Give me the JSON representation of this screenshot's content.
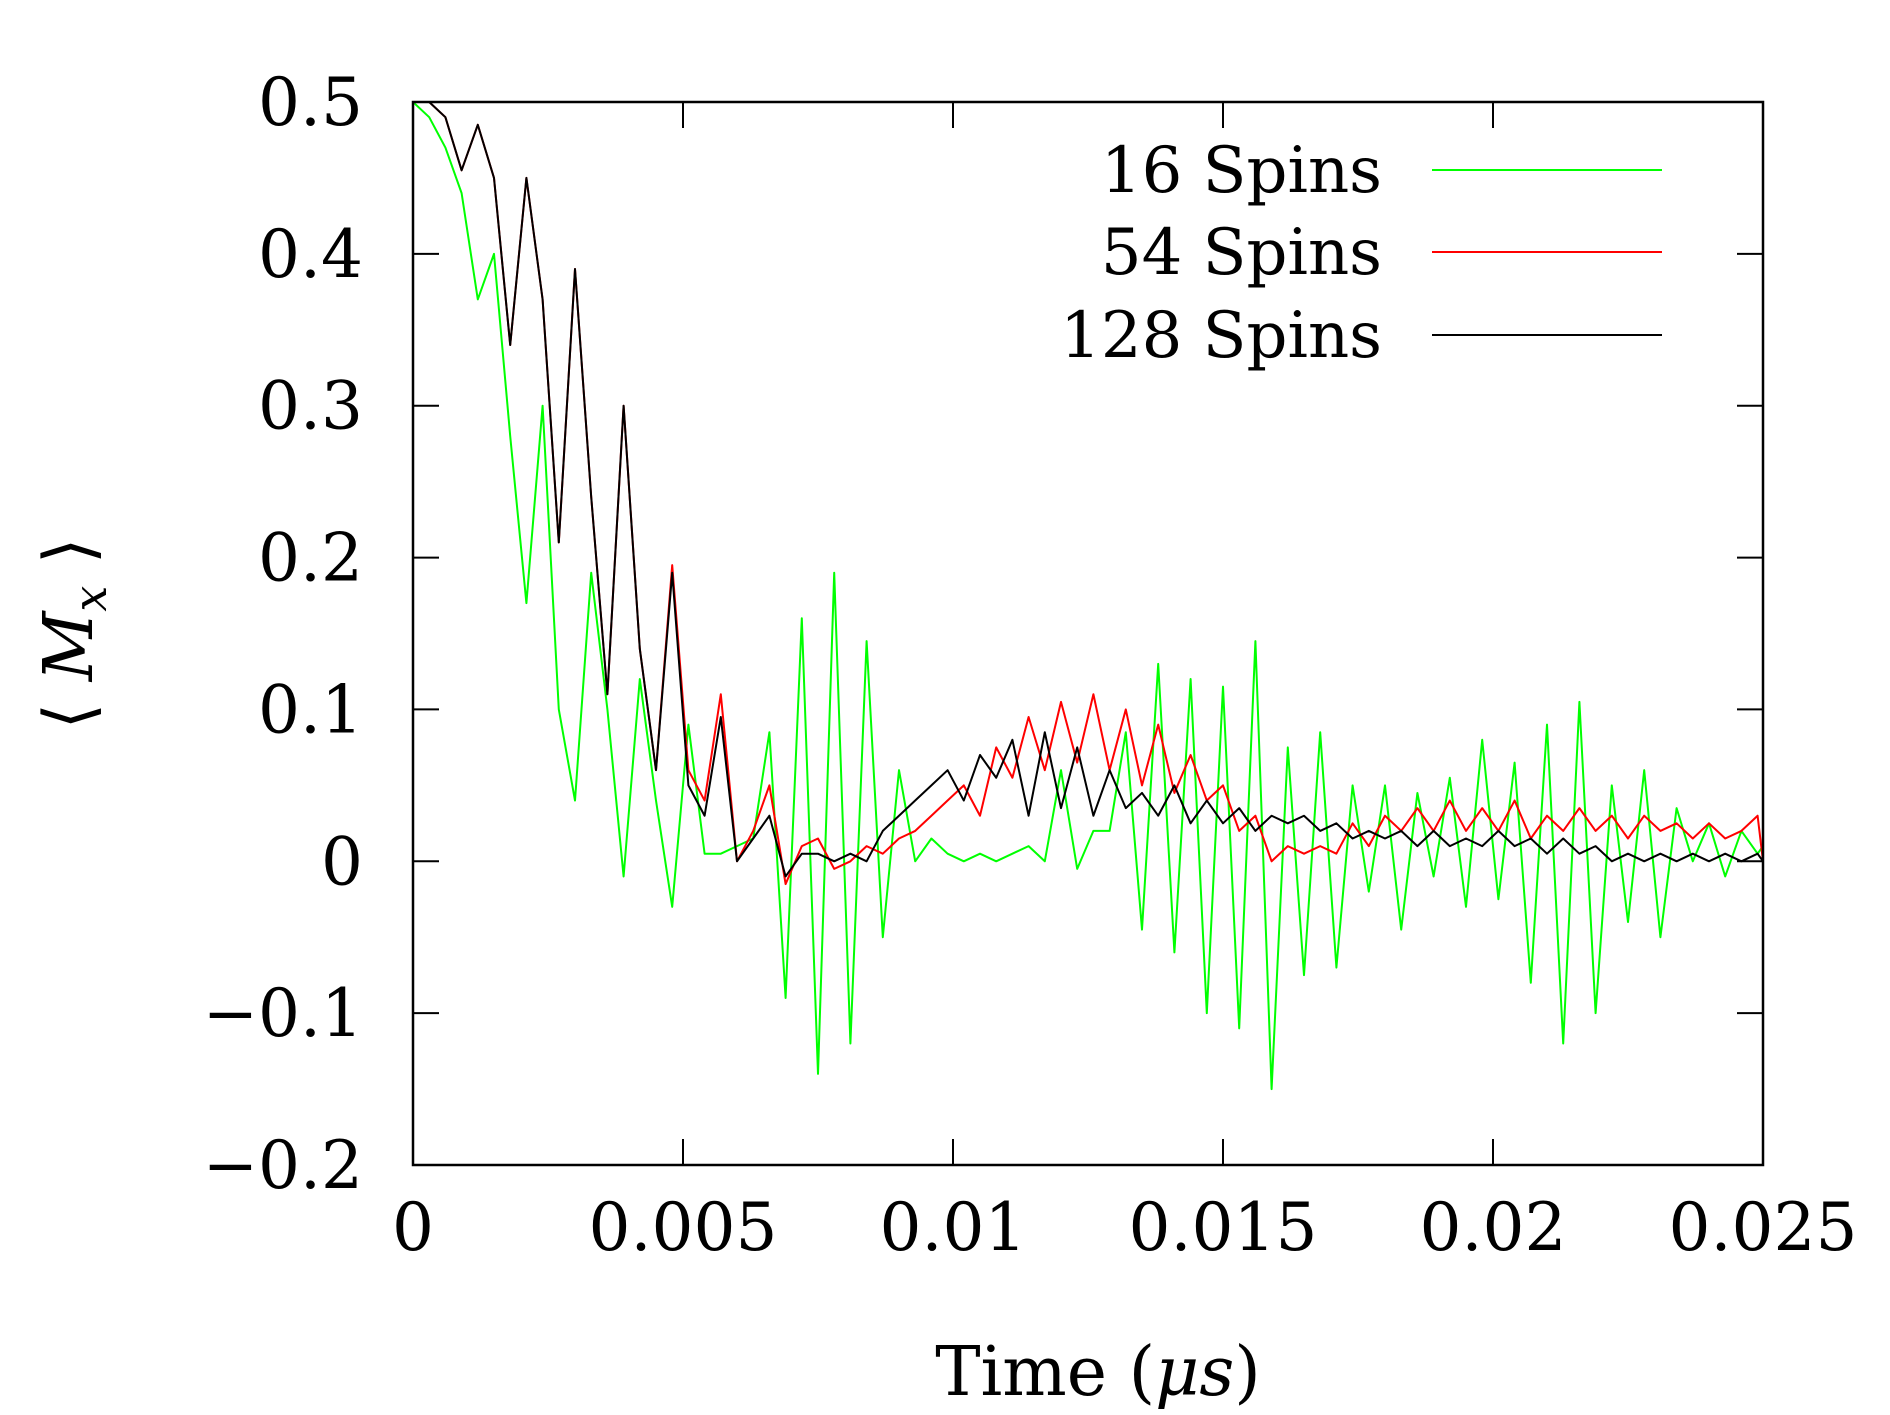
{
  "chart_data": {
    "type": "line",
    "title": "",
    "xlabel": "Time (μs)",
    "ylabel": "⟨M_x⟩",
    "xlim": [
      0,
      0.025
    ],
    "ylim": [
      -0.2,
      0.5
    ],
    "xticks": [
      0,
      0.005,
      0.01,
      0.015,
      0.02,
      0.025
    ],
    "xtick_labels": [
      "0",
      "0.005",
      "0.01",
      "0.015",
      "0.02",
      "0.025"
    ],
    "yticks": [
      -0.2,
      -0.1,
      0,
      0.1,
      0.2,
      0.3,
      0.4,
      0.5
    ],
    "ytick_labels": [
      "−0.2",
      "−0.1",
      "0",
      "0.1",
      "0.2",
      "0.3",
      "0.4",
      "0.5"
    ],
    "grid": false,
    "legend_position": "top-right",
    "series": [
      {
        "name": "16 Spins",
        "color": "#00ff00",
        "points": [
          [
            0,
            0.5
          ],
          [
            0.0003,
            0.49
          ],
          [
            0.0006,
            0.47
          ],
          [
            0.0009,
            0.44
          ],
          [
            0.0012,
            0.37
          ],
          [
            0.0015,
            0.4
          ],
          [
            0.0018,
            0.28
          ],
          [
            0.0021,
            0.17
          ],
          [
            0.0024,
            0.3
          ],
          [
            0.0027,
            0.1
          ],
          [
            0.003,
            0.04
          ],
          [
            0.0033,
            0.19
          ],
          [
            0.0036,
            0.1
          ],
          [
            0.0039,
            -0.01
          ],
          [
            0.0042,
            0.12
          ],
          [
            0.0045,
            0.04
          ],
          [
            0.0048,
            -0.03
          ],
          [
            0.0051,
            0.09
          ],
          [
            0.0054,
            0.005
          ],
          [
            0.0057,
            0.005
          ],
          [
            0.006,
            0.01
          ],
          [
            0.0063,
            0.015
          ],
          [
            0.0066,
            0.085
          ],
          [
            0.0069,
            -0.09
          ],
          [
            0.0072,
            0.16
          ],
          [
            0.0075,
            -0.14
          ],
          [
            0.0078,
            0.19
          ],
          [
            0.0081,
            -0.12
          ],
          [
            0.0084,
            0.145
          ],
          [
            0.0087,
            -0.05
          ],
          [
            0.009,
            0.06
          ],
          [
            0.0093,
            0.0
          ],
          [
            0.0096,
            0.015
          ],
          [
            0.0099,
            0.005
          ],
          [
            0.0102,
            0.0
          ],
          [
            0.0105,
            0.005
          ],
          [
            0.0108,
            0.0
          ],
          [
            0.0111,
            0.005
          ],
          [
            0.0114,
            0.01
          ],
          [
            0.0117,
            0.0
          ],
          [
            0.012,
            0.06
          ],
          [
            0.0123,
            -0.005
          ],
          [
            0.0126,
            0.02
          ],
          [
            0.0129,
            0.02
          ],
          [
            0.0132,
            0.085
          ],
          [
            0.0135,
            -0.045
          ],
          [
            0.0138,
            0.13
          ],
          [
            0.0141,
            -0.06
          ],
          [
            0.0144,
            0.12
          ],
          [
            0.0147,
            -0.1
          ],
          [
            0.015,
            0.115
          ],
          [
            0.0153,
            -0.11
          ],
          [
            0.0156,
            0.145
          ],
          [
            0.0159,
            -0.15
          ],
          [
            0.0162,
            0.075
          ],
          [
            0.0165,
            -0.075
          ],
          [
            0.0168,
            0.085
          ],
          [
            0.0171,
            -0.07
          ],
          [
            0.0174,
            0.05
          ],
          [
            0.0177,
            -0.02
          ],
          [
            0.018,
            0.05
          ],
          [
            0.0183,
            -0.045
          ],
          [
            0.0186,
            0.045
          ],
          [
            0.0189,
            -0.01
          ],
          [
            0.0192,
            0.055
          ],
          [
            0.0195,
            -0.03
          ],
          [
            0.0198,
            0.08
          ],
          [
            0.0201,
            -0.025
          ],
          [
            0.0204,
            0.065
          ],
          [
            0.0207,
            -0.08
          ],
          [
            0.021,
            0.09
          ],
          [
            0.0213,
            -0.12
          ],
          [
            0.0216,
            0.105
          ],
          [
            0.0219,
            -0.1
          ],
          [
            0.0222,
            0.05
          ],
          [
            0.0225,
            -0.04
          ],
          [
            0.0228,
            0.06
          ],
          [
            0.0231,
            -0.05
          ],
          [
            0.0234,
            0.035
          ],
          [
            0.0237,
            0.0
          ],
          [
            0.024,
            0.025
          ],
          [
            0.0243,
            -0.01
          ],
          [
            0.0246,
            0.02
          ],
          [
            0.0249,
            0.005
          ],
          [
            0.025,
            0.01
          ]
        ]
      },
      {
        "name": "54 Spins",
        "color": "#ff0000",
        "points": [
          [
            0,
            0.5
          ],
          [
            0.0003,
            0.5
          ],
          [
            0.0006,
            0.49
          ],
          [
            0.0009,
            0.455
          ],
          [
            0.0012,
            0.485
          ],
          [
            0.0015,
            0.45
          ],
          [
            0.0018,
            0.34
          ],
          [
            0.0021,
            0.45
          ],
          [
            0.0024,
            0.37
          ],
          [
            0.0027,
            0.21
          ],
          [
            0.003,
            0.39
          ],
          [
            0.0033,
            0.24
          ],
          [
            0.0036,
            0.11
          ],
          [
            0.0039,
            0.3
          ],
          [
            0.0042,
            0.14
          ],
          [
            0.0045,
            0.06
          ],
          [
            0.0048,
            0.195
          ],
          [
            0.0051,
            0.06
          ],
          [
            0.0054,
            0.04
          ],
          [
            0.0057,
            0.11
          ],
          [
            0.006,
            0.0
          ],
          [
            0.0063,
            0.02
          ],
          [
            0.0066,
            0.05
          ],
          [
            0.0069,
            -0.015
          ],
          [
            0.0072,
            0.01
          ],
          [
            0.0075,
            0.015
          ],
          [
            0.0078,
            -0.005
          ],
          [
            0.0081,
            0.0
          ],
          [
            0.0084,
            0.01
          ],
          [
            0.0087,
            0.005
          ],
          [
            0.009,
            0.015
          ],
          [
            0.0093,
            0.02
          ],
          [
            0.0096,
            0.03
          ],
          [
            0.0099,
            0.04
          ],
          [
            0.0102,
            0.05
          ],
          [
            0.0105,
            0.03
          ],
          [
            0.0108,
            0.075
          ],
          [
            0.0111,
            0.055
          ],
          [
            0.0114,
            0.095
          ],
          [
            0.0117,
            0.06
          ],
          [
            0.012,
            0.105
          ],
          [
            0.0123,
            0.065
          ],
          [
            0.0126,
            0.11
          ],
          [
            0.0129,
            0.06
          ],
          [
            0.0132,
            0.1
          ],
          [
            0.0135,
            0.05
          ],
          [
            0.0138,
            0.09
          ],
          [
            0.0141,
            0.045
          ],
          [
            0.0144,
            0.07
          ],
          [
            0.0147,
            0.04
          ],
          [
            0.015,
            0.05
          ],
          [
            0.0153,
            0.02
          ],
          [
            0.0156,
            0.03
          ],
          [
            0.0159,
            0.0
          ],
          [
            0.0162,
            0.01
          ],
          [
            0.0165,
            0.005
          ],
          [
            0.0168,
            0.01
          ],
          [
            0.0171,
            0.005
          ],
          [
            0.0174,
            0.025
          ],
          [
            0.0177,
            0.01
          ],
          [
            0.018,
            0.03
          ],
          [
            0.0183,
            0.02
          ],
          [
            0.0186,
            0.035
          ],
          [
            0.0189,
            0.02
          ],
          [
            0.0192,
            0.04
          ],
          [
            0.0195,
            0.02
          ],
          [
            0.0198,
            0.035
          ],
          [
            0.0201,
            0.02
          ],
          [
            0.0204,
            0.04
          ],
          [
            0.0207,
            0.015
          ],
          [
            0.021,
            0.03
          ],
          [
            0.0213,
            0.02
          ],
          [
            0.0216,
            0.035
          ],
          [
            0.0219,
            0.02
          ],
          [
            0.0222,
            0.03
          ],
          [
            0.0225,
            0.015
          ],
          [
            0.0228,
            0.03
          ],
          [
            0.0231,
            0.02
          ],
          [
            0.0234,
            0.025
          ],
          [
            0.0237,
            0.015
          ],
          [
            0.024,
            0.025
          ],
          [
            0.0243,
            0.015
          ],
          [
            0.0246,
            0.02
          ],
          [
            0.0249,
            0.03
          ],
          [
            0.025,
            0.0
          ]
        ]
      },
      {
        "name": "128 Spins",
        "color": "#000000",
        "points": [
          [
            0,
            0.5
          ],
          [
            0.0003,
            0.5
          ],
          [
            0.0006,
            0.49
          ],
          [
            0.0009,
            0.455
          ],
          [
            0.0012,
            0.485
          ],
          [
            0.0015,
            0.45
          ],
          [
            0.0018,
            0.34
          ],
          [
            0.0021,
            0.45
          ],
          [
            0.0024,
            0.37
          ],
          [
            0.0027,
            0.21
          ],
          [
            0.003,
            0.39
          ],
          [
            0.0033,
            0.24
          ],
          [
            0.0036,
            0.11
          ],
          [
            0.0039,
            0.3
          ],
          [
            0.0042,
            0.14
          ],
          [
            0.0045,
            0.06
          ],
          [
            0.0048,
            0.19
          ],
          [
            0.0051,
            0.05
          ],
          [
            0.0054,
            0.03
          ],
          [
            0.0057,
            0.095
          ],
          [
            0.006,
            0.0
          ],
          [
            0.0063,
            0.015
          ],
          [
            0.0066,
            0.03
          ],
          [
            0.0069,
            -0.01
          ],
          [
            0.0072,
            0.005
          ],
          [
            0.0075,
            0.005
          ],
          [
            0.0078,
            0.0
          ],
          [
            0.0081,
            0.005
          ],
          [
            0.0084,
            0.0
          ],
          [
            0.0087,
            0.02
          ],
          [
            0.009,
            0.03
          ],
          [
            0.0093,
            0.04
          ],
          [
            0.0096,
            0.05
          ],
          [
            0.0099,
            0.06
          ],
          [
            0.0102,
            0.04
          ],
          [
            0.0105,
            0.07
          ],
          [
            0.0108,
            0.055
          ],
          [
            0.0111,
            0.08
          ],
          [
            0.0114,
            0.03
          ],
          [
            0.0117,
            0.085
          ],
          [
            0.012,
            0.035
          ],
          [
            0.0123,
            0.075
          ],
          [
            0.0126,
            0.03
          ],
          [
            0.0129,
            0.06
          ],
          [
            0.0132,
            0.035
          ],
          [
            0.0135,
            0.045
          ],
          [
            0.0138,
            0.03
          ],
          [
            0.0141,
            0.05
          ],
          [
            0.0144,
            0.025
          ],
          [
            0.0147,
            0.04
          ],
          [
            0.015,
            0.025
          ],
          [
            0.0153,
            0.035
          ],
          [
            0.0156,
            0.02
          ],
          [
            0.0159,
            0.03
          ],
          [
            0.0162,
            0.025
          ],
          [
            0.0165,
            0.03
          ],
          [
            0.0168,
            0.02
          ],
          [
            0.0171,
            0.025
          ],
          [
            0.0174,
            0.015
          ],
          [
            0.0177,
            0.02
          ],
          [
            0.018,
            0.015
          ],
          [
            0.0183,
            0.02
          ],
          [
            0.0186,
            0.01
          ],
          [
            0.0189,
            0.02
          ],
          [
            0.0192,
            0.01
          ],
          [
            0.0195,
            0.015
          ],
          [
            0.0198,
            0.01
          ],
          [
            0.0201,
            0.02
          ],
          [
            0.0204,
            0.01
          ],
          [
            0.0207,
            0.015
          ],
          [
            0.021,
            0.005
          ],
          [
            0.0213,
            0.015
          ],
          [
            0.0216,
            0.005
          ],
          [
            0.0219,
            0.01
          ],
          [
            0.0222,
            0.0
          ],
          [
            0.0225,
            0.005
          ],
          [
            0.0228,
            0.0
          ],
          [
            0.0231,
            0.005
          ],
          [
            0.0234,
            0.0
          ],
          [
            0.0237,
            0.005
          ],
          [
            0.024,
            0.0
          ],
          [
            0.0243,
            0.005
          ],
          [
            0.0246,
            0.0
          ],
          [
            0.0249,
            0.005
          ],
          [
            0.025,
            0.0
          ]
        ]
      }
    ]
  }
}
